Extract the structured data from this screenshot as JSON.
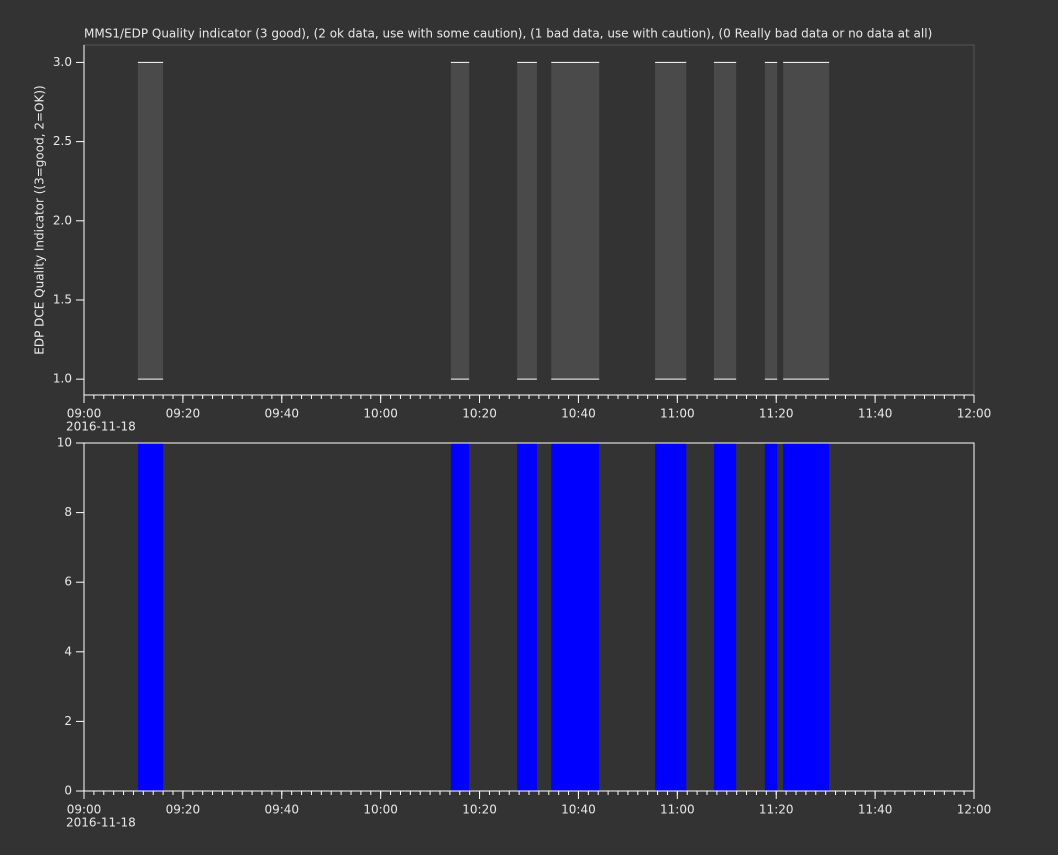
{
  "chart_data": [
    {
      "type": "range",
      "title": "MMS1/EDP  Quality indicator (3 good), (2 ok data, use with some caution), (1 bad data, use with caution), (0 Really bad data or no data at all)",
      "ylabel": "EDP DCE Quality Indicator ((3=good, 2=OK))",
      "xlim": [
        0,
        180
      ],
      "xticks": [
        {
          "value": 0,
          "label": "09:00"
        },
        {
          "value": 20,
          "label": "09:20"
        },
        {
          "value": 40,
          "label": "09:40"
        },
        {
          "value": 60,
          "label": "10:00"
        },
        {
          "value": 80,
          "label": "10:20"
        },
        {
          "value": 100,
          "label": "10:40"
        },
        {
          "value": 120,
          "label": "11:00"
        },
        {
          "value": 140,
          "label": "11:20"
        },
        {
          "value": 160,
          "label": "11:40"
        },
        {
          "value": 180,
          "label": "12:00"
        }
      ],
      "xminor": 2,
      "date_label": "2016-11-18",
      "ylim": [
        0.9,
        3.11
      ],
      "yticks": [
        {
          "value": 1,
          "label": "1.0"
        },
        {
          "value": 1.5,
          "label": "1.5"
        },
        {
          "value": 2,
          "label": "2.0"
        },
        {
          "value": 2.5,
          "label": "2.5"
        },
        {
          "value": 3,
          "label": "3.0"
        }
      ],
      "color": "#4a4a4a",
      "line_color": "#ffffff",
      "intervals": [
        {
          "start": 10.9,
          "end": 16.0,
          "low": 1,
          "high": 3
        },
        {
          "start": 74.2,
          "end": 77.9,
          "low": 1,
          "high": 3
        },
        {
          "start": 87.6,
          "end": 91.6,
          "low": 1,
          "high": 3
        },
        {
          "start": 94.5,
          "end": 104.2,
          "low": 1,
          "high": 3
        },
        {
          "start": 115.5,
          "end": 121.8,
          "low": 1,
          "high": 3
        },
        {
          "start": 127.4,
          "end": 131.9,
          "low": 1,
          "high": 3
        },
        {
          "start": 137.7,
          "end": 140.2,
          "low": 1,
          "high": 3
        },
        {
          "start": 141.4,
          "end": 150.7,
          "low": 1,
          "high": 3
        }
      ]
    },
    {
      "type": "span",
      "xlim": [
        0,
        180
      ],
      "xticks": [
        {
          "value": 0,
          "label": "09:00"
        },
        {
          "value": 20,
          "label": "09:20"
        },
        {
          "value": 40,
          "label": "09:40"
        },
        {
          "value": 60,
          "label": "10:00"
        },
        {
          "value": 80,
          "label": "10:20"
        },
        {
          "value": 100,
          "label": "10:40"
        },
        {
          "value": 120,
          "label": "11:00"
        },
        {
          "value": 140,
          "label": "11:20"
        },
        {
          "value": 160,
          "label": "11:40"
        },
        {
          "value": 180,
          "label": "12:00"
        }
      ],
      "xminor": 2,
      "date_label": "2016-11-18",
      "ylim": [
        0,
        10
      ],
      "yticks": [
        0,
        2,
        4,
        6,
        8,
        10
      ],
      "color": "#0000ff",
      "intervals": [
        {
          "start": 10.9,
          "end": 16.0,
          "value": 10
        },
        {
          "start": 74.2,
          "end": 77.9,
          "value": 10
        },
        {
          "start": 87.6,
          "end": 91.6,
          "value": 10
        },
        {
          "start": 94.5,
          "end": 104.2,
          "value": 10
        },
        {
          "start": 115.5,
          "end": 121.8,
          "value": 10
        },
        {
          "start": 127.4,
          "end": 131.9,
          "value": 10
        },
        {
          "start": 137.7,
          "end": 140.2,
          "value": 10
        },
        {
          "start": 141.4,
          "end": 150.7,
          "value": 10
        }
      ]
    }
  ]
}
